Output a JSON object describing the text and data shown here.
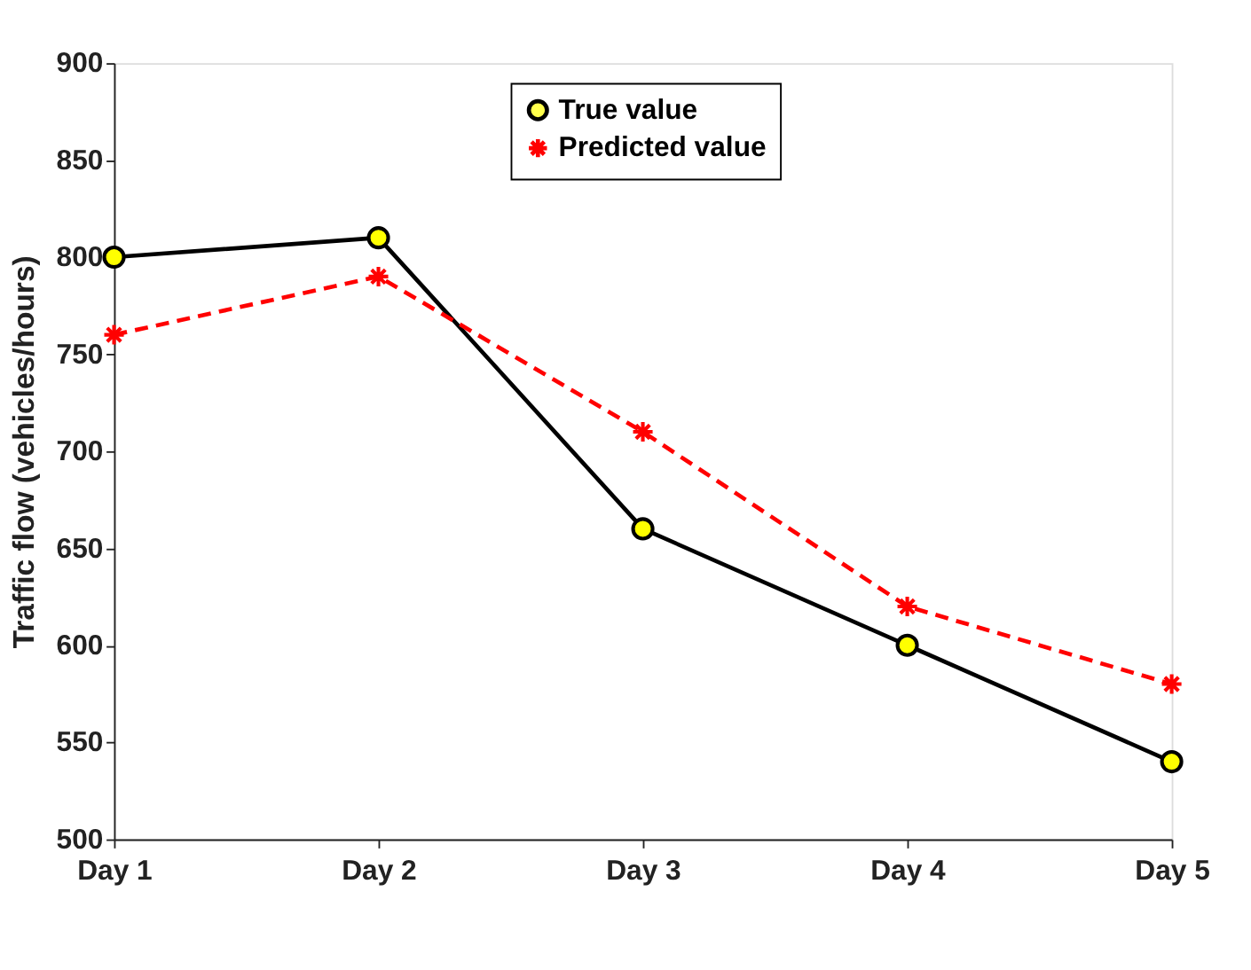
{
  "chart_data": {
    "type": "line",
    "ylabel": "Traffic flow (vehicles/hours)",
    "categories": [
      "Day 1",
      "Day 2",
      "Day 3",
      "Day 4",
      "Day 5"
    ],
    "series": [
      {
        "name": "True value",
        "color": "#000000",
        "marker": "circle",
        "line_style": "solid",
        "values": [
          800,
          810,
          660,
          600,
          540
        ]
      },
      {
        "name": "Predicted value",
        "color": "#ff0000",
        "marker": "cross",
        "line_style": "dashed",
        "values": [
          760,
          790,
          710,
          620,
          580
        ]
      }
    ],
    "ylim": [
      500,
      900
    ],
    "yticks": [
      500,
      550,
      600,
      650,
      700,
      750,
      800,
      850,
      900
    ],
    "grid": false,
    "legend": "top"
  }
}
